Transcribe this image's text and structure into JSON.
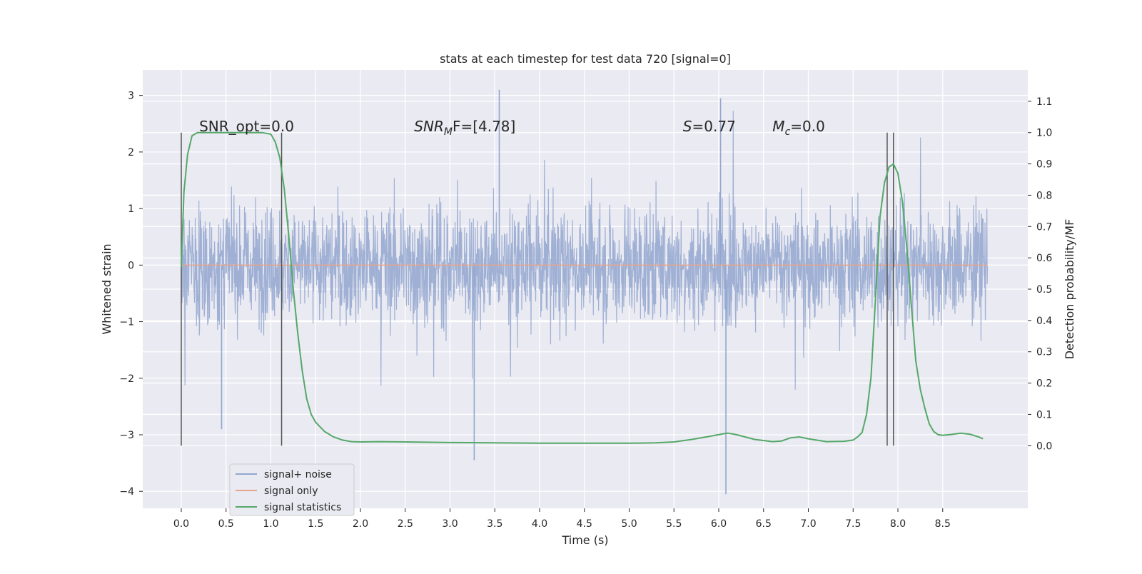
{
  "chart_data": {
    "type": "line",
    "title": "stats at each timestep for test data 720 [signal=0]",
    "xlabel": "Time (s)",
    "ylabel": "Whitened strain",
    "y2label": "Detection probability/MF",
    "xlim": [
      -0.43,
      9.45
    ],
    "ylim": [
      -4.3,
      3.45
    ],
    "y2lim": [
      -0.2,
      1.2
    ],
    "xticks": [
      0.0,
      0.5,
      1.0,
      1.5,
      2.0,
      2.5,
      3.0,
      3.5,
      4.0,
      4.5,
      5.0,
      5.5,
      6.0,
      6.5,
      7.0,
      7.5,
      8.0,
      8.5
    ],
    "xtick_labels": [
      "0.0",
      "0.5",
      "1.0",
      "1.5",
      "2.0",
      "2.5",
      "3.0",
      "3.5",
      "4.0",
      "4.5",
      "5.0",
      "5.5",
      "6.0",
      "6.5",
      "7.0",
      "7.5",
      "8.0",
      "8.5"
    ],
    "yticks": [
      -4,
      -3,
      -2,
      -1,
      0,
      1,
      2,
      3
    ],
    "ytick_labels": [
      "−4",
      "−3",
      "−2",
      "−1",
      "0",
      "1",
      "2",
      "3"
    ],
    "y2ticks": [
      0.0,
      0.1,
      0.2,
      0.3,
      0.4,
      0.5,
      0.6,
      0.7,
      0.8,
      0.9,
      1.0,
      1.1
    ],
    "y2tick_labels": [
      "0.0",
      "0.1",
      "0.2",
      "0.3",
      "0.4",
      "0.5",
      "0.6",
      "0.7",
      "0.8",
      "0.9",
      "1.0",
      "1.1"
    ],
    "grid": true,
    "legend_position": "lower-left",
    "series": [
      {
        "name": "signal+ noise",
        "color": "#92a6cf",
        "axis": "left",
        "kind": "noise",
        "x_range": [
          0.0,
          9.0
        ],
        "envelope_typical": [
          -1.2,
          1.2
        ],
        "extremes": [
          -4.05,
          3.1
        ]
      },
      {
        "name": "signal only",
        "color": "#e8a48a",
        "axis": "left",
        "x": [
          0.0,
          9.0
        ],
        "y": [
          0.0,
          0.0
        ]
      },
      {
        "name": "signal statistics",
        "color": "#55a868",
        "axis": "right",
        "x": [
          0.0,
          0.03,
          0.07,
          0.12,
          0.18,
          0.3,
          0.5,
          0.7,
          0.9,
          1.0,
          1.05,
          1.1,
          1.15,
          1.2,
          1.25,
          1.3,
          1.35,
          1.4,
          1.45,
          1.5,
          1.6,
          1.7,
          1.8,
          1.9,
          2.0,
          2.2,
          2.5,
          3.0,
          3.5,
          4.0,
          4.5,
          5.0,
          5.3,
          5.5,
          5.7,
          5.9,
          6.05,
          6.1,
          6.2,
          6.4,
          6.6,
          6.7,
          6.8,
          6.9,
          7.0,
          7.2,
          7.4,
          7.5,
          7.55,
          7.6,
          7.65,
          7.7,
          7.75,
          7.8,
          7.85,
          7.9,
          7.95,
          8.0,
          8.05,
          8.1,
          8.15,
          8.2,
          8.25,
          8.3,
          8.35,
          8.4,
          8.45,
          8.5,
          8.6,
          8.7,
          8.8,
          8.9,
          8.95
        ],
        "y": [
          0.57,
          0.81,
          0.93,
          0.99,
          1.0,
          1.0,
          1.0,
          1.0,
          1.0,
          0.995,
          0.97,
          0.92,
          0.82,
          0.67,
          0.5,
          0.36,
          0.24,
          0.15,
          0.1,
          0.075,
          0.045,
          0.028,
          0.018,
          0.013,
          0.012,
          0.013,
          0.012,
          0.01,
          0.009,
          0.008,
          0.008,
          0.008,
          0.009,
          0.012,
          0.02,
          0.03,
          0.038,
          0.04,
          0.035,
          0.02,
          0.013,
          0.015,
          0.025,
          0.028,
          0.022,
          0.013,
          0.014,
          0.018,
          0.028,
          0.042,
          0.1,
          0.22,
          0.47,
          0.73,
          0.84,
          0.89,
          0.9,
          0.87,
          0.78,
          0.63,
          0.45,
          0.27,
          0.18,
          0.12,
          0.07,
          0.045,
          0.035,
          0.033,
          0.036,
          0.04,
          0.037,
          0.028,
          0.022
        ]
      }
    ],
    "vlines": [
      0.0,
      1.12,
      7.88,
      7.95
    ],
    "annotations": [
      {
        "text": "SNR_opt=0.0",
        "x": 0.2
      },
      {
        "base": "SNR",
        "sub": "M",
        "tail": "F=[4.78]",
        "x": 2.6
      },
      {
        "base": "S",
        "tail": "=0.77",
        "x": 5.6
      },
      {
        "base": "M",
        "sub": "c",
        "tail": "=0.0",
        "x": 6.6
      }
    ],
    "annotation_level": 2.45
  }
}
